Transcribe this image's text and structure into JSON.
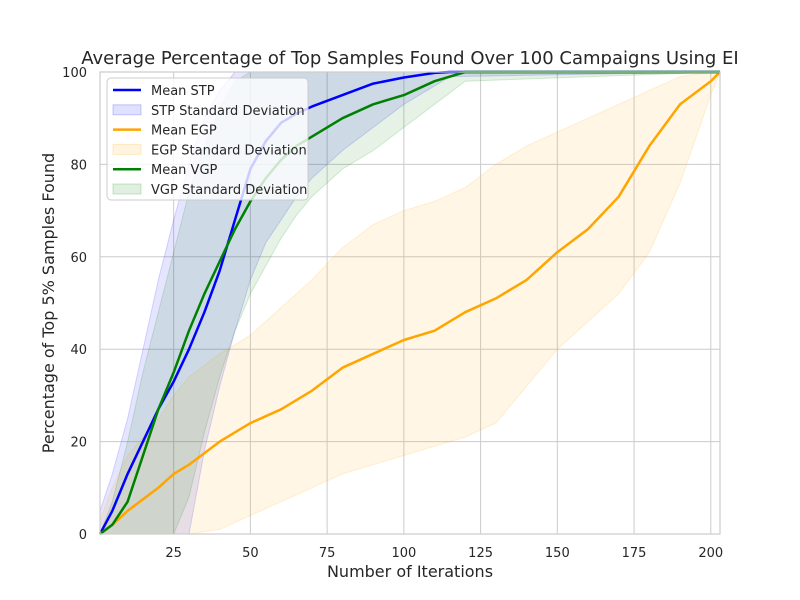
{
  "chart_data": {
    "type": "line",
    "title": "Average Percentage of Top Samples Found Over 100 Campaigns Using EI",
    "xlabel": "Number of Iterations",
    "ylabel": "Percentage of Top 5% Samples Found",
    "xlim": [
      1,
      203
    ],
    "ylim": [
      0,
      100
    ],
    "xticks": [
      25,
      50,
      75,
      100,
      125,
      150,
      175,
      200
    ],
    "yticks": [
      0,
      20,
      40,
      60,
      80,
      100
    ],
    "grid": true,
    "legend_position": "upper-left",
    "series": [
      {
        "name": "Mean STP",
        "band_name": "STP Standard Deviation",
        "color": "#0000ff",
        "x": [
          1,
          5,
          10,
          15,
          20,
          25,
          30,
          35,
          40,
          45,
          50,
          55,
          60,
          65,
          70,
          80,
          90,
          100,
          110,
          115,
          203
        ],
        "mean": [
          0,
          5,
          13,
          20,
          27,
          33,
          40,
          48,
          57,
          68,
          79,
          85,
          89,
          91,
          92.5,
          95,
          97.5,
          98.8,
          99.8,
          100,
          100
        ],
        "lower": [
          0,
          0,
          0,
          0,
          0,
          0,
          0,
          18,
          32,
          44,
          55,
          63,
          68,
          73,
          77,
          83,
          88,
          93,
          97,
          99,
          100
        ],
        "upper": [
          5,
          13,
          25,
          40,
          55,
          68,
          80,
          90,
          96,
          100,
          100,
          100,
          100,
          100,
          100,
          100,
          100,
          100,
          100,
          100,
          100
        ]
      },
      {
        "name": "Mean EGP",
        "band_name": "EGP Standard Deviation",
        "color": "#ffa500",
        "x": [
          1,
          5,
          10,
          20,
          25,
          30,
          40,
          50,
          60,
          70,
          80,
          90,
          100,
          110,
          120,
          130,
          140,
          150,
          160,
          170,
          180,
          190,
          200,
          203
        ],
        "mean": [
          0,
          2,
          5,
          10,
          13,
          15,
          20,
          24,
          27,
          31,
          36,
          39,
          42,
          44,
          48,
          51,
          55,
          61,
          66,
          73,
          84,
          93,
          98,
          100
        ],
        "lower": [
          0,
          0,
          0,
          0,
          0,
          0,
          1,
          4,
          7,
          10,
          13,
          15,
          17,
          19,
          21,
          24,
          32,
          40,
          46,
          52,
          61,
          76,
          95,
          100
        ],
        "upper": [
          3,
          10,
          17,
          25,
          30,
          34,
          39,
          43,
          49,
          55,
          62,
          67,
          70,
          72,
          75,
          80,
          84,
          87,
          90,
          93,
          96,
          99,
          100,
          100
        ]
      },
      {
        "name": "Mean VGP",
        "band_name": "VGP Standard Deviation",
        "color": "#008000",
        "x": [
          1,
          5,
          10,
          15,
          20,
          25,
          30,
          35,
          40,
          45,
          50,
          55,
          60,
          65,
          70,
          80,
          90,
          100,
          110,
          120,
          203
        ],
        "mean": [
          0,
          2,
          7,
          17,
          27,
          35,
          44,
          52,
          59,
          66,
          72,
          77,
          81,
          84,
          86,
          90,
          93,
          95,
          98,
          100,
          100
        ],
        "lower": [
          0,
          0,
          0,
          0,
          0,
          0,
          8,
          22,
          34,
          44,
          52,
          58,
          64,
          69,
          73,
          79,
          83,
          88,
          93,
          98,
          100
        ],
        "upper": [
          0,
          7,
          20,
          35,
          48,
          61,
          74,
          84,
          92,
          98,
          100,
          100,
          100,
          100,
          100,
          100,
          100,
          100,
          100,
          100,
          100
        ]
      }
    ]
  }
}
